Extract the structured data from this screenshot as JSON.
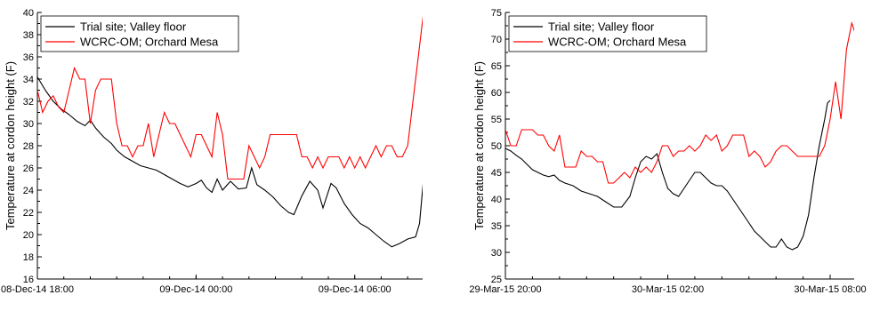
{
  "chart_data": [
    {
      "type": "line",
      "ylabel": "Temperature at cordon height (F)",
      "xlabel": "",
      "ylim": [
        16,
        40
      ],
      "yticks": [
        16,
        18,
        20,
        22,
        24,
        26,
        28,
        30,
        32,
        34,
        36,
        38,
        40
      ],
      "xlim": [
        0,
        14.6
      ],
      "x_unit": "hours after 08-Dec-14 18:00",
      "xticks": [
        {
          "x": 0,
          "label": "08-Dec-14 18:00"
        },
        {
          "x": 6,
          "label": "09-Dec-14 00:00"
        },
        {
          "x": 12,
          "label": "09-Dec-14 06:00"
        }
      ],
      "legend_position": "top-left",
      "series": [
        {
          "name": "Trial site; Valley floor",
          "color": "#000000",
          "points": [
            [
              0,
              34.2
            ],
            [
              0.3,
              33
            ],
            [
              0.6,
              32
            ],
            [
              0.9,
              31.3
            ],
            [
              1.2,
              30.8
            ],
            [
              1.5,
              30.2
            ],
            [
              1.8,
              29.8
            ],
            [
              2.0,
              30.3
            ],
            [
              2.2,
              29.6
            ],
            [
              2.5,
              28.8
            ],
            [
              2.8,
              28.2
            ],
            [
              3.0,
              27.6
            ],
            [
              3.3,
              27.0
            ],
            [
              3.6,
              26.6
            ],
            [
              3.9,
              26.2
            ],
            [
              4.2,
              26.0
            ],
            [
              4.5,
              25.8
            ],
            [
              4.8,
              25.4
            ],
            [
              5.1,
              25.0
            ],
            [
              5.4,
              24.6
            ],
            [
              5.7,
              24.3
            ],
            [
              6.0,
              24.6
            ],
            [
              6.2,
              24.9
            ],
            [
              6.4,
              24.2
            ],
            [
              6.6,
              23.8
            ],
            [
              6.8,
              25.0
            ],
            [
              7.0,
              24.0
            ],
            [
              7.3,
              24.8
            ],
            [
              7.6,
              24.1
            ],
            [
              7.9,
              24.2
            ],
            [
              8.1,
              26.0
            ],
            [
              8.3,
              24.5
            ],
            [
              8.6,
              24.0
            ],
            [
              8.9,
              23.4
            ],
            [
              9.2,
              22.6
            ],
            [
              9.5,
              22.0
            ],
            [
              9.7,
              21.8
            ],
            [
              10.0,
              23.5
            ],
            [
              10.3,
              24.8
            ],
            [
              10.6,
              24.0
            ],
            [
              10.8,
              22.4
            ],
            [
              11.1,
              24.6
            ],
            [
              11.3,
              24.2
            ],
            [
              11.6,
              22.8
            ],
            [
              11.9,
              21.8
            ],
            [
              12.2,
              21.0
            ],
            [
              12.5,
              20.6
            ],
            [
              12.8,
              20.0
            ],
            [
              13.1,
              19.4
            ],
            [
              13.4,
              18.9
            ],
            [
              13.7,
              19.2
            ],
            [
              14.0,
              19.6
            ],
            [
              14.3,
              19.8
            ],
            [
              14.45,
              21.0
            ],
            [
              14.6,
              25.0
            ]
          ]
        },
        {
          "name": "WCRC-OM; Orchard Mesa",
          "color": "#ff0000",
          "points": [
            [
              0,
              33
            ],
            [
              0.2,
              31
            ],
            [
              0.4,
              32
            ],
            [
              0.6,
              32.5
            ],
            [
              0.8,
              31.5
            ],
            [
              1.0,
              31
            ],
            [
              1.2,
              33
            ],
            [
              1.4,
              35
            ],
            [
              1.6,
              34
            ],
            [
              1.8,
              34
            ],
            [
              2.0,
              30
            ],
            [
              2.2,
              33
            ],
            [
              2.4,
              34
            ],
            [
              2.6,
              34
            ],
            [
              2.8,
              34
            ],
            [
              3.0,
              30
            ],
            [
              3.2,
              28
            ],
            [
              3.4,
              28
            ],
            [
              3.6,
              27
            ],
            [
              3.8,
              28
            ],
            [
              4.0,
              28
            ],
            [
              4.2,
              30
            ],
            [
              4.4,
              27
            ],
            [
              4.6,
              29
            ],
            [
              4.8,
              31
            ],
            [
              5.0,
              30
            ],
            [
              5.2,
              30
            ],
            [
              5.4,
              29
            ],
            [
              5.6,
              28
            ],
            [
              5.8,
              27
            ],
            [
              6.0,
              29
            ],
            [
              6.2,
              29
            ],
            [
              6.4,
              28
            ],
            [
              6.6,
              27
            ],
            [
              6.8,
              31
            ],
            [
              7.0,
              29
            ],
            [
              7.2,
              25
            ],
            [
              7.4,
              25
            ],
            [
              7.6,
              25
            ],
            [
              7.8,
              25
            ],
            [
              8.0,
              28
            ],
            [
              8.2,
              27
            ],
            [
              8.4,
              26
            ],
            [
              8.6,
              27
            ],
            [
              8.8,
              29
            ],
            [
              9.0,
              29
            ],
            [
              9.2,
              29
            ],
            [
              9.4,
              29
            ],
            [
              9.6,
              29
            ],
            [
              9.8,
              29
            ],
            [
              10.0,
              27
            ],
            [
              10.2,
              27
            ],
            [
              10.4,
              26
            ],
            [
              10.6,
              27
            ],
            [
              10.8,
              26
            ],
            [
              11.0,
              27
            ],
            [
              11.2,
              27
            ],
            [
              11.4,
              27
            ],
            [
              11.6,
              26
            ],
            [
              11.8,
              27
            ],
            [
              12.0,
              26
            ],
            [
              12.2,
              27
            ],
            [
              12.4,
              26
            ],
            [
              12.6,
              27
            ],
            [
              12.8,
              28
            ],
            [
              13.0,
              27
            ],
            [
              13.2,
              28
            ],
            [
              13.4,
              28
            ],
            [
              13.6,
              27
            ],
            [
              13.8,
              27
            ],
            [
              14.0,
              28
            ],
            [
              14.2,
              32
            ],
            [
              14.4,
              36
            ],
            [
              14.6,
              40
            ]
          ]
        }
      ]
    },
    {
      "type": "line",
      "ylabel": "Temperature at cordon height (F)",
      "xlabel": "",
      "ylim": [
        25,
        75
      ],
      "yticks": [
        25,
        30,
        35,
        40,
        45,
        50,
        55,
        60,
        65,
        70,
        75
      ],
      "xlim": [
        0,
        12
      ],
      "x_unit": "hours after 29-Mar-15 20:00",
      "xticks": [
        {
          "x": 0,
          "label": "29-Mar-15 20:00"
        },
        {
          "x": 6,
          "label": "30-Mar-15 02:00"
        },
        {
          "x": 12,
          "label": "30-Mar-15 08:00"
        }
      ],
      "legend_position": "top-left",
      "series": [
        {
          "name": "Trial site; Valley floor",
          "color": "#000000",
          "points": [
            [
              0,
              49.5
            ],
            [
              0.2,
              49
            ],
            [
              0.4,
              48.2
            ],
            [
              0.6,
              47.5
            ],
            [
              0.8,
              46.5
            ],
            [
              1.0,
              45.5
            ],
            [
              1.2,
              45
            ],
            [
              1.4,
              44.5
            ],
            [
              1.6,
              44.2
            ],
            [
              1.8,
              44.5
            ],
            [
              2.0,
              43.5
            ],
            [
              2.2,
              43
            ],
            [
              2.5,
              42.5
            ],
            [
              2.8,
              41.5
            ],
            [
              3.1,
              41
            ],
            [
              3.4,
              40.5
            ],
            [
              3.7,
              39.5
            ],
            [
              4.0,
              38.5
            ],
            [
              4.3,
              38.5
            ],
            [
              4.6,
              40.5
            ],
            [
              4.8,
              44
            ],
            [
              5.0,
              47
            ],
            [
              5.2,
              48
            ],
            [
              5.4,
              47.5
            ],
            [
              5.6,
              48.5
            ],
            [
              5.8,
              45
            ],
            [
              6.0,
              42
            ],
            [
              6.2,
              41
            ],
            [
              6.4,
              40.5
            ],
            [
              6.6,
              42
            ],
            [
              6.8,
              43.5
            ],
            [
              7.0,
              45
            ],
            [
              7.2,
              45
            ],
            [
              7.4,
              44
            ],
            [
              7.6,
              43
            ],
            [
              7.8,
              42.5
            ],
            [
              8.0,
              42.5
            ],
            [
              8.2,
              41.5
            ],
            [
              8.4,
              40
            ],
            [
              8.6,
              38.5
            ],
            [
              8.8,
              37
            ],
            [
              9.0,
              35.5
            ],
            [
              9.2,
              34
            ],
            [
              9.4,
              33
            ],
            [
              9.6,
              32
            ],
            [
              9.8,
              31
            ],
            [
              10.0,
              31
            ],
            [
              10.2,
              32.5
            ],
            [
              10.4,
              31
            ],
            [
              10.6,
              30.5
            ],
            [
              10.8,
              31
            ],
            [
              11.0,
              33
            ],
            [
              11.2,
              37
            ],
            [
              11.4,
              44
            ],
            [
              11.6,
              50
            ],
            [
              11.8,
              55
            ],
            [
              11.9,
              58
            ],
            [
              12.0,
              58.5
            ]
          ]
        },
        {
          "name": "WCRC-OM; Orchard Mesa",
          "color": "#ff0000",
          "points": [
            [
              0,
              53
            ],
            [
              0.2,
              50
            ],
            [
              0.4,
              50
            ],
            [
              0.6,
              53
            ],
            [
              0.8,
              53
            ],
            [
              1.0,
              53
            ],
            [
              1.2,
              52
            ],
            [
              1.4,
              52
            ],
            [
              1.6,
              50
            ],
            [
              1.8,
              49
            ],
            [
              2.0,
              52
            ],
            [
              2.2,
              46
            ],
            [
              2.4,
              46
            ],
            [
              2.6,
              46
            ],
            [
              2.8,
              49
            ],
            [
              3.0,
              48
            ],
            [
              3.2,
              48
            ],
            [
              3.4,
              47
            ],
            [
              3.6,
              47
            ],
            [
              3.8,
              43
            ],
            [
              4.0,
              43
            ],
            [
              4.2,
              44
            ],
            [
              4.4,
              45
            ],
            [
              4.6,
              44
            ],
            [
              4.8,
              46
            ],
            [
              5.0,
              45
            ],
            [
              5.2,
              46
            ],
            [
              5.4,
              45
            ],
            [
              5.6,
              47
            ],
            [
              5.8,
              50
            ],
            [
              6.0,
              50
            ],
            [
              6.2,
              48
            ],
            [
              6.4,
              49
            ],
            [
              6.6,
              49
            ],
            [
              6.8,
              50
            ],
            [
              7.0,
              49
            ],
            [
              7.2,
              50
            ],
            [
              7.4,
              52
            ],
            [
              7.6,
              51
            ],
            [
              7.8,
              52
            ],
            [
              8.0,
              49
            ],
            [
              8.2,
              50
            ],
            [
              8.4,
              52
            ],
            [
              8.6,
              52
            ],
            [
              8.8,
              52
            ],
            [
              9.0,
              48
            ],
            [
              9.2,
              49
            ],
            [
              9.4,
              48
            ],
            [
              9.6,
              46
            ],
            [
              9.8,
              47
            ],
            [
              10.0,
              49
            ],
            [
              10.2,
              50
            ],
            [
              10.4,
              50
            ],
            [
              10.6,
              49
            ],
            [
              10.8,
              48
            ],
            [
              11.0,
              48
            ],
            [
              11.2,
              48
            ],
            [
              11.4,
              48
            ],
            [
              11.6,
              48
            ],
            [
              11.8,
              50
            ],
            [
              12.0,
              55
            ],
            [
              12.2,
              62
            ],
            [
              12.4,
              55
            ],
            [
              12.6,
              68
            ],
            [
              12.8,
              73
            ],
            [
              13.0,
              70
            ],
            [
              13.2,
              72
            ],
            [
              13.4,
              66
            ],
            [
              13.6,
              60
            ],
            [
              13.7,
              69
            ]
          ]
        }
      ]
    }
  ]
}
